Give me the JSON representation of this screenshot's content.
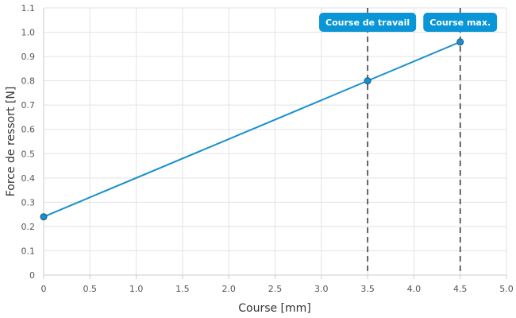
{
  "chart_data": {
    "type": "line",
    "title": "",
    "xlabel": "Course [mm]",
    "ylabel": "Force de ressort [N]",
    "xlim": [
      0,
      5
    ],
    "ylim": [
      0,
      1.1
    ],
    "x_ticks": [
      "0",
      "0.5",
      "1.0",
      "1.5",
      "2.0",
      "2.5",
      "3.0",
      "3.5",
      "4.0",
      "4.5",
      "5.0"
    ],
    "y_ticks": [
      "0",
      "0.1",
      "0.2",
      "0.3",
      "0.4",
      "0.5",
      "0.6",
      "0.7",
      "0.8",
      "0.9",
      "1.0",
      "1.1"
    ],
    "grid": true,
    "series": [
      {
        "color": "#1a8fcf",
        "points": [
          {
            "x": 0,
            "y": 0.24
          },
          {
            "x": 3.5,
            "y": 0.8
          },
          {
            "x": 4.5,
            "y": 0.96
          }
        ]
      }
    ],
    "markers": [
      {
        "x": 3.5,
        "label": "Course de travail",
        "color": "#0a95d6"
      },
      {
        "x": 4.5,
        "label": "Course max.",
        "color": "#0a95d6"
      }
    ]
  }
}
